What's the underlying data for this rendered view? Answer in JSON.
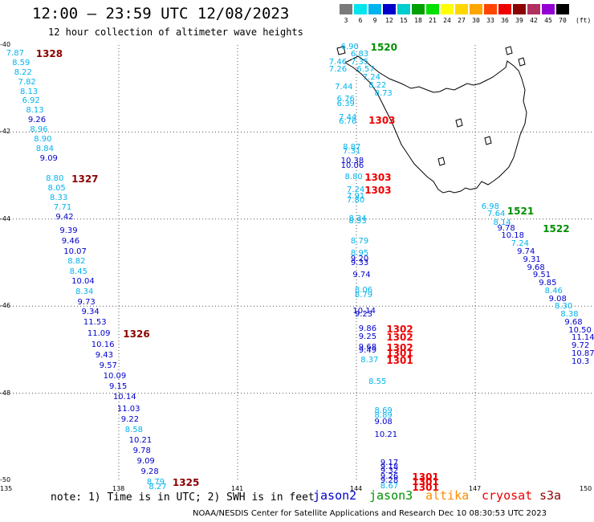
{
  "header": {
    "title": "12:00 – 23:59 UTC 12/08/2023",
    "subtitle": "12 hour collection of altimeter wave heights"
  },
  "legend": {
    "unit": "(ft)",
    "labels": [
      "3",
      "6",
      "9",
      "12",
      "15",
      "18",
      "21",
      "24",
      "27",
      "30",
      "33",
      "36",
      "39",
      "42",
      "45",
      "70"
    ],
    "colors": [
      "#7a7a7a",
      "#00e5ee",
      "#00b4ee",
      "#0000cd",
      "#00cdcd",
      "#00a000",
      "#00e000",
      "#ffff00",
      "#ffd700",
      "#ffa500",
      "#ff4500",
      "#ee0000",
      "#8b0000",
      "#b03060",
      "#9400d3",
      "#000000"
    ]
  },
  "axes": {
    "lon_ticks": [
      "135",
      "138",
      "141",
      "144",
      "147",
      "150"
    ],
    "lat_ticks": [
      "-40",
      "-42",
      "-44",
      "-46",
      "-48",
      "-50"
    ]
  },
  "observations": [
    {
      "v": "7.87",
      "lon": 135.4,
      "lat": -40.2,
      "c": "#00b4ee"
    },
    {
      "v": "8.59",
      "lon": 135.55,
      "lat": -40.42,
      "c": "#00b4ee"
    },
    {
      "v": "8.22",
      "lon": 135.6,
      "lat": -40.64,
      "c": "#00b4ee"
    },
    {
      "v": "7.82",
      "lon": 135.7,
      "lat": -40.86,
      "c": "#00b4ee"
    },
    {
      "v": "8.13",
      "lon": 135.75,
      "lat": -41.08,
      "c": "#00b4ee"
    },
    {
      "v": "6.92",
      "lon": 135.8,
      "lat": -41.3,
      "c": "#00b4ee"
    },
    {
      "v": "8.13",
      "lon": 135.9,
      "lat": -41.52,
      "c": "#00b4ee"
    },
    {
      "v": "9.26",
      "lon": 135.95,
      "lat": -41.74,
      "c": "#0000cd"
    },
    {
      "v": "8.96",
      "lon": 136.0,
      "lat": -41.96,
      "c": "#00b4ee"
    },
    {
      "v": "8.90",
      "lon": 136.1,
      "lat": -42.18,
      "c": "#00b4ee"
    },
    {
      "v": "8.84",
      "lon": 136.15,
      "lat": -42.4,
      "c": "#00b4ee"
    },
    {
      "v": "9.09",
      "lon": 136.25,
      "lat": -42.62,
      "c": "#0000cd"
    },
    {
      "v": "8.80",
      "lon": 136.4,
      "lat": -43.08,
      "c": "#00b4ee"
    },
    {
      "v": "8.05",
      "lon": 136.45,
      "lat": -43.3,
      "c": "#00b4ee"
    },
    {
      "v": "8.33",
      "lon": 136.5,
      "lat": -43.52,
      "c": "#00b4ee"
    },
    {
      "v": "7.71",
      "lon": 136.6,
      "lat": -43.74,
      "c": "#00b4ee"
    },
    {
      "v": "9.42",
      "lon": 136.65,
      "lat": -43.96,
      "c": "#0000cd"
    },
    {
      "v": "9.39",
      "lon": 136.75,
      "lat": -44.28,
      "c": "#0000cd"
    },
    {
      "v": "9.46",
      "lon": 136.8,
      "lat": -44.52,
      "c": "#0000cd"
    },
    {
      "v": "10.07",
      "lon": 136.85,
      "lat": -44.76,
      "c": "#0000cd"
    },
    {
      "v": "8.82",
      "lon": 136.95,
      "lat": -44.99,
      "c": "#00b4ee"
    },
    {
      "v": "8.45",
      "lon": 137.0,
      "lat": -45.22,
      "c": "#00b4ee"
    },
    {
      "v": "10.04",
      "lon": 137.05,
      "lat": -45.45,
      "c": "#0000cd"
    },
    {
      "v": "8.34",
      "lon": 137.15,
      "lat": -45.68,
      "c": "#00b4ee"
    },
    {
      "v": "9.73",
      "lon": 137.2,
      "lat": -45.92,
      "c": "#0000cd"
    },
    {
      "v": "9.34",
      "lon": 137.3,
      "lat": -46.15,
      "c": "#0000cd"
    },
    {
      "v": "11.53",
      "lon": 137.35,
      "lat": -46.38,
      "c": "#0000cd"
    },
    {
      "v": "11.09",
      "lon": 137.45,
      "lat": -46.65,
      "c": "#0000cd"
    },
    {
      "v": "10.16",
      "lon": 137.55,
      "lat": -46.9,
      "c": "#0000cd"
    },
    {
      "v": "9.43",
      "lon": 137.65,
      "lat": -47.14,
      "c": "#0000cd"
    },
    {
      "v": "9.57",
      "lon": 137.75,
      "lat": -47.38,
      "c": "#0000cd"
    },
    {
      "v": "10.09",
      "lon": 137.85,
      "lat": -47.62,
      "c": "#0000cd"
    },
    {
      "v": "9.15",
      "lon": 138.0,
      "lat": -47.86,
      "c": "#0000cd"
    },
    {
      "v": "10.14",
      "lon": 138.1,
      "lat": -48.1,
      "c": "#0000cd"
    },
    {
      "v": "11.03",
      "lon": 138.2,
      "lat": -48.38,
      "c": "#0000cd"
    },
    {
      "v": "9.22",
      "lon": 138.3,
      "lat": -48.62,
      "c": "#0000cd"
    },
    {
      "v": "8.58",
      "lon": 138.4,
      "lat": -48.86,
      "c": "#00b4ee"
    },
    {
      "v": "10.21",
      "lon": 138.5,
      "lat": -49.1,
      "c": "#0000cd"
    },
    {
      "v": "9.78",
      "lon": 138.6,
      "lat": -49.34,
      "c": "#0000cd"
    },
    {
      "v": "9.09",
      "lon": 138.7,
      "lat": -49.58,
      "c": "#0000cd"
    },
    {
      "v": "9.28",
      "lon": 138.8,
      "lat": -49.82,
      "c": "#0000cd"
    },
    {
      "v": "8.79",
      "lon": 138.95,
      "lat": -50.06,
      "c": "#00b4ee"
    },
    {
      "v": "8.27",
      "lon": 139.0,
      "lat": -50.17,
      "c": "#00b4ee"
    },
    {
      "v": "6.90",
      "lon": 143.85,
      "lat": -40.05,
      "c": "#00b4ee"
    },
    {
      "v": "6.83",
      "lon": 144.1,
      "lat": -40.22,
      "c": "#00b4ee"
    },
    {
      "v": "7.46",
      "lon": 143.55,
      "lat": -40.4,
      "c": "#00b4ee"
    },
    {
      "v": "7.35",
      "lon": 144.1,
      "lat": -40.4,
      "c": "#00b4ee"
    },
    {
      "v": "7.26",
      "lon": 143.55,
      "lat": -40.58,
      "c": "#00b4ee"
    },
    {
      "v": "6.57",
      "lon": 144.25,
      "lat": -40.58,
      "c": "#00b4ee"
    },
    {
      "v": "7.24",
      "lon": 144.4,
      "lat": -40.76,
      "c": "#00b4ee"
    },
    {
      "v": "8.22",
      "lon": 144.55,
      "lat": -40.94,
      "c": "#00b4ee"
    },
    {
      "v": "7.44",
      "lon": 143.7,
      "lat": -40.98,
      "c": "#00b4ee"
    },
    {
      "v": "8.73",
      "lon": 144.7,
      "lat": -41.12,
      "c": "#00b4ee"
    },
    {
      "v": "6.76",
      "lon": 143.75,
      "lat": -41.26,
      "c": "#00b4ee"
    },
    {
      "v": "6.39",
      "lon": 143.75,
      "lat": -41.36,
      "c": "#00b4ee"
    },
    {
      "v": "7.44",
      "lon": 143.8,
      "lat": -41.68,
      "c": "#00b4ee"
    },
    {
      "v": "6.76",
      "lon": 143.8,
      "lat": -41.78,
      "c": "#00b4ee"
    },
    {
      "v": "8.87",
      "lon": 143.9,
      "lat": -42.36,
      "c": "#00b4ee"
    },
    {
      "v": "7.31",
      "lon": 143.9,
      "lat": -42.46,
      "c": "#00b4ee"
    },
    {
      "v": "10.38",
      "lon": 143.85,
      "lat": -42.68,
      "c": "#0000cd"
    },
    {
      "v": "10.06",
      "lon": 143.85,
      "lat": -42.78,
      "c": "#0000cd"
    },
    {
      "v": "8.80",
      "lon": 143.95,
      "lat": -43.04,
      "c": "#00b4ee"
    },
    {
      "v": "7.24",
      "lon": 144.0,
      "lat": -43.34,
      "c": "#00b4ee"
    },
    {
      "v": "7.91",
      "lon": 144.0,
      "lat": -43.48,
      "c": "#00b4ee"
    },
    {
      "v": "7.80",
      "lon": 144.0,
      "lat": -43.58,
      "c": "#00b4ee"
    },
    {
      "v": "8.34",
      "lon": 144.05,
      "lat": -44.0,
      "c": "#00b4ee"
    },
    {
      "v": "8.53",
      "lon": 144.05,
      "lat": -44.06,
      "c": "#00b4ee"
    },
    {
      "v": "8.79",
      "lon": 144.1,
      "lat": -44.52,
      "c": "#00b4ee"
    },
    {
      "v": "8.95",
      "lon": 144.1,
      "lat": -44.8,
      "c": "#00b4ee"
    },
    {
      "v": "9.20",
      "lon": 144.1,
      "lat": -44.92,
      "c": "#0000cd"
    },
    {
      "v": "9.33",
      "lon": 144.1,
      "lat": -45.02,
      "c": "#0000cd"
    },
    {
      "v": "9.74",
      "lon": 144.15,
      "lat": -45.3,
      "c": "#0000cd"
    },
    {
      "v": "8.06",
      "lon": 144.2,
      "lat": -45.65,
      "c": "#00b4ee"
    },
    {
      "v": "8.79",
      "lon": 144.2,
      "lat": -45.75,
      "c": "#00b4ee"
    },
    {
      "v": "10.14",
      "lon": 144.15,
      "lat": -46.12,
      "c": "#0000cd"
    },
    {
      "v": "9.23",
      "lon": 144.2,
      "lat": -46.2,
      "c": "#0000cd"
    },
    {
      "v": "9.86",
      "lon": 144.3,
      "lat": -46.54,
      "c": "#0000cd"
    },
    {
      "v": "9.25",
      "lon": 144.3,
      "lat": -46.72,
      "c": "#0000cd"
    },
    {
      "v": "9.68",
      "lon": 144.3,
      "lat": -46.95,
      "c": "#0000cd"
    },
    {
      "v": "9.49",
      "lon": 144.3,
      "lat": -47.03,
      "c": "#0000cd"
    },
    {
      "v": "8.37",
      "lon": 144.35,
      "lat": -47.26,
      "c": "#00b4ee"
    },
    {
      "v": "8.55",
      "lon": 144.55,
      "lat": -47.74,
      "c": "#00b4ee"
    },
    {
      "v": "8.69",
      "lon": 144.7,
      "lat": -48.42,
      "c": "#00b4ee"
    },
    {
      "v": "8.89",
      "lon": 144.7,
      "lat": -48.52,
      "c": "#00b4ee"
    },
    {
      "v": "9.08",
      "lon": 144.7,
      "lat": -48.68,
      "c": "#0000cd"
    },
    {
      "v": "10.21",
      "lon": 144.7,
      "lat": -48.97,
      "c": "#0000cd"
    },
    {
      "v": "9.17",
      "lon": 144.85,
      "lat": -49.62,
      "c": "#0000cd"
    },
    {
      "v": "9.18",
      "lon": 144.85,
      "lat": -49.7,
      "c": "#0000cd"
    },
    {
      "v": "9.32",
      "lon": 144.85,
      "lat": -49.8,
      "c": "#0000cd"
    },
    {
      "v": "9.26",
      "lon": 144.85,
      "lat": -49.92,
      "c": "#0000cd"
    },
    {
      "v": "9.28",
      "lon": 144.85,
      "lat": -50.02,
      "c": "#0000cd"
    },
    {
      "v": "8.67",
      "lon": 144.85,
      "lat": -50.14,
      "c": "#00b4ee"
    },
    {
      "v": "6.98",
      "lon": 147.4,
      "lat": -43.72,
      "c": "#00b4ee"
    },
    {
      "v": "7.64",
      "lon": 147.55,
      "lat": -43.9,
      "c": "#00b4ee"
    },
    {
      "v": "8.14",
      "lon": 147.7,
      "lat": -44.1,
      "c": "#00b4ee"
    },
    {
      "v": "9.78",
      "lon": 147.8,
      "lat": -44.22,
      "c": "#0000cd"
    },
    {
      "v": "10.18",
      "lon": 147.9,
      "lat": -44.4,
      "c": "#0000cd"
    },
    {
      "v": "7.24",
      "lon": 148.15,
      "lat": -44.58,
      "c": "#00b4ee"
    },
    {
      "v": "9.74",
      "lon": 148.3,
      "lat": -44.76,
      "c": "#0000cd"
    },
    {
      "v": "9.31",
      "lon": 148.45,
      "lat": -44.94,
      "c": "#0000cd"
    },
    {
      "v": "9.68",
      "lon": 148.55,
      "lat": -45.12,
      "c": "#0000cd"
    },
    {
      "v": "9.51",
      "lon": 148.7,
      "lat": -45.3,
      "c": "#0000cd"
    },
    {
      "v": "9.85",
      "lon": 148.85,
      "lat": -45.48,
      "c": "#0000cd"
    },
    {
      "v": "8.46",
      "lon": 149.0,
      "lat": -45.66,
      "c": "#00b4ee"
    },
    {
      "v": "9.08",
      "lon": 149.1,
      "lat": -45.84,
      "c": "#0000cd"
    },
    {
      "v": "8.30",
      "lon": 149.25,
      "lat": -46.02,
      "c": "#00b4ee"
    },
    {
      "v": "8.38",
      "lon": 149.4,
      "lat": -46.2,
      "c": "#00b4ee"
    },
    {
      "v": "9.68",
      "lon": 149.5,
      "lat": -46.38,
      "c": "#0000cd"
    },
    {
      "v": "10.50",
      "lon": 149.6,
      "lat": -46.56,
      "c": "#0000cd"
    },
    {
      "v": "11.14",
      "lon": 149.7,
      "lat": -46.74,
      "c": "#0000cd"
    },
    {
      "v": "9.72",
      "lon": 149.8,
      "lat": -46.92,
      "c": "#0000cd"
    },
    {
      "v": "10.87",
      "lon": 149.9,
      "lat": -47.1,
      "c": "#0000cd"
    },
    {
      "v": "10.3",
      "lon": 149.95,
      "lat": -47.28,
      "c": "#0000cd"
    }
  ],
  "tracks": [
    {
      "id": "1328",
      "lon": 136.15,
      "lat": -40.2,
      "c": "#8b0000"
    },
    {
      "id": "1327",
      "lon": 137.05,
      "lat": -43.08,
      "c": "#8b0000"
    },
    {
      "id": "1326",
      "lon": 138.35,
      "lat": -46.65,
      "c": "#8b0000"
    },
    {
      "id": "1325",
      "lon": 139.6,
      "lat": -50.06,
      "c": "#8b0000"
    },
    {
      "id": "1520",
      "lon": 144.6,
      "lat": -40.05,
      "c": "#009000"
    },
    {
      "id": "1303",
      "lon": 144.55,
      "lat": -41.74,
      "c": "#ee0000"
    },
    {
      "id": "1303",
      "lon": 144.45,
      "lat": -43.04,
      "c": "#ee0000"
    },
    {
      "id": "1303",
      "lon": 144.45,
      "lat": -43.34,
      "c": "#ee0000"
    },
    {
      "id": "1521",
      "lon": 148.05,
      "lat": -43.82,
      "c": "#009000"
    },
    {
      "id": "1522",
      "lon": 148.95,
      "lat": -44.22,
      "c": "#009000"
    },
    {
      "id": "1302",
      "lon": 145.0,
      "lat": -46.54,
      "c": "#ee0000"
    },
    {
      "id": "1302",
      "lon": 145.0,
      "lat": -46.72,
      "c": "#ee0000"
    },
    {
      "id": "1302",
      "lon": 145.0,
      "lat": -46.96,
      "c": "#ee0000"
    },
    {
      "id": "1301",
      "lon": 145.0,
      "lat": -47.08,
      "c": "#ee0000"
    },
    {
      "id": "1301",
      "lon": 145.0,
      "lat": -47.26,
      "c": "#ee0000"
    },
    {
      "id": "1301",
      "lon": 145.65,
      "lat": -49.92,
      "c": "#ee0000"
    },
    {
      "id": "1301",
      "lon": 145.65,
      "lat": -50.04,
      "c": "#ee0000"
    },
    {
      "id": "1301",
      "lon": 145.65,
      "lat": -50.16,
      "c": "#ee0000"
    }
  ],
  "note": "note: 1) Time is in UTC; 2) SWH is in feet",
  "satellites": [
    {
      "name": "jason2",
      "color": "#0000cd"
    },
    {
      "name": "jason3",
      "color": "#009000"
    },
    {
      "name": "altika",
      "color": "#ff8c00"
    },
    {
      "name": "cryosat",
      "color": "#ee0000"
    },
    {
      "name": "s3a",
      "color": "#8b0000"
    }
  ],
  "footer": "NOAA/NESDIS Center for Satellite Applications and Research   Dec 10 08:30:53 UTC 2023"
}
